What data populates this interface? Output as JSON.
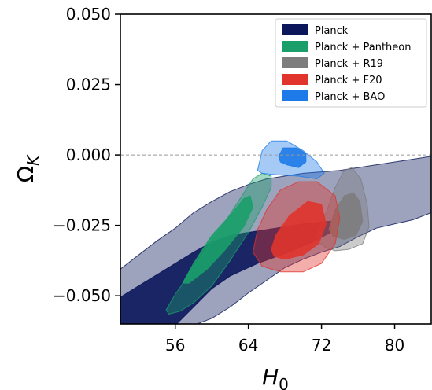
{
  "chart_data": {
    "type": "contour",
    "xlabel": "H_0",
    "ylabel": "Ω_K",
    "xlim": [
      50,
      84
    ],
    "ylim": [
      -0.06,
      0.05
    ],
    "xticks": [
      "56",
      "64",
      "72",
      "80"
    ],
    "yticks": [
      "0.050",
      "0.025",
      "0.000",
      "−0.025",
      "−0.050"
    ],
    "reference_line": {
      "y": 0.0,
      "style": "dashed",
      "color": "#999999"
    },
    "legend_position": "top-right",
    "series": [
      {
        "name": "Planck",
        "color": "#0b175a",
        "contours": [
          {
            "level": "2σ",
            "points": [
              [
                50,
                -0.0405
              ],
              [
                52,
                -0.0355
              ],
              [
                54,
                -0.0305
              ],
              [
                56,
                -0.026
              ],
              [
                58,
                -0.0205
              ],
              [
                60,
                -0.0165
              ],
              [
                62,
                -0.013
              ],
              [
                64,
                -0.0105
              ],
              [
                66,
                -0.0085
              ],
              [
                70,
                -0.0065
              ],
              [
                74,
                -0.0055
              ],
              [
                78,
                -0.0035
              ],
              [
                82,
                -0.0015
              ],
              [
                84,
                -0.0005
              ],
              [
                84,
                -0.0205
              ],
              [
                82,
                -0.023
              ],
              [
                80,
                -0.0245
              ],
              [
                78,
                -0.026
              ],
              [
                76,
                -0.029
              ],
              [
                74,
                -0.0325
              ],
              [
                72,
                -0.0345
              ],
              [
                70,
                -0.037
              ],
              [
                68,
                -0.04
              ],
              [
                66,
                -0.0445
              ],
              [
                64,
                -0.049
              ],
              [
                62,
                -0.054
              ],
              [
                60,
                -0.058
              ],
              [
                58,
                -0.0605
              ],
              [
                50,
                -0.0605
              ]
            ]
          },
          {
            "level": "1σ",
            "points": [
              [
                50,
                -0.0505
              ],
              [
                52,
                -0.0465
              ],
              [
                54,
                -0.0425
              ],
              [
                56,
                -0.0385
              ],
              [
                58,
                -0.0345
              ],
              [
                60,
                -0.031
              ],
              [
                62,
                -0.0285
              ],
              [
                64,
                -0.0275
              ],
              [
                66,
                -0.0265
              ],
              [
                70,
                -0.0245
              ],
              [
                73,
                -0.0235
              ],
              [
                73,
                -0.0275
              ],
              [
                71,
                -0.031
              ],
              [
                68,
                -0.035
              ],
              [
                65,
                -0.0385
              ],
              [
                62,
                -0.043
              ],
              [
                60,
                -0.0475
              ],
              [
                58,
                -0.054
              ],
              [
                56,
                -0.0605
              ],
              [
                50,
                -0.0605
              ]
            ]
          }
        ]
      },
      {
        "name": "Planck + Pantheon",
        "color": "#1a9e6a",
        "contours": [
          {
            "level": "2σ",
            "points": [
              [
                55,
                -0.055
              ],
              [
                56,
                -0.0495
              ],
              [
                57.5,
                -0.0425
              ],
              [
                59,
                -0.0355
              ],
              [
                61,
                -0.026
              ],
              [
                63,
                -0.016
              ],
              [
                64.5,
                -0.0085
              ],
              [
                65.5,
                -0.0065
              ],
              [
                66.5,
                -0.0075
              ],
              [
                66.5,
                -0.0115
              ],
              [
                65.5,
                -0.0185
              ],
              [
                64,
                -0.0275
              ],
              [
                62,
                -0.0375
              ],
              [
                60,
                -0.0465
              ],
              [
                58,
                -0.0525
              ],
              [
                56.5,
                -0.0555
              ],
              [
                55.3,
                -0.0565
              ]
            ]
          },
          {
            "level": "1σ",
            "points": [
              [
                56.8,
                -0.0455
              ],
              [
                58,
                -0.0385
              ],
              [
                60,
                -0.0285
              ],
              [
                62,
                -0.0215
              ],
              [
                63.5,
                -0.0155
              ],
              [
                64.2,
                -0.0145
              ],
              [
                64.5,
                -0.0185
              ],
              [
                63.5,
                -0.0255
              ],
              [
                61.5,
                -0.0335
              ],
              [
                59.5,
                -0.0405
              ],
              [
                57.5,
                -0.0455
              ]
            ]
          }
        ]
      },
      {
        "name": "Planck + R19",
        "color": "#7d7d7d",
        "contours": [
          {
            "level": "2σ",
            "points": [
              [
                71.5,
                -0.0285
              ],
              [
                72.5,
                -0.0205
              ],
              [
                73.5,
                -0.0115
              ],
              [
                74.5,
                -0.0055
              ],
              [
                75.3,
                -0.0045
              ],
              [
                76.3,
                -0.0085
              ],
              [
                77,
                -0.0175
              ],
              [
                77.2,
                -0.0255
              ],
              [
                76.5,
                -0.0315
              ],
              [
                75,
                -0.0335
              ],
              [
                73.5,
                -0.034
              ],
              [
                72.5,
                -0.033
              ],
              [
                71.7,
                -0.031
              ]
            ]
          },
          {
            "level": "1σ",
            "points": [
              [
                72.8,
                -0.0265
              ],
              [
                73.5,
                -0.0195
              ],
              [
                74.5,
                -0.0145
              ],
              [
                75.5,
                -0.0135
              ],
              [
                76.2,
                -0.0165
              ],
              [
                76.5,
                -0.0235
              ],
              [
                75.8,
                -0.0285
              ],
              [
                74.5,
                -0.03
              ],
              [
                73.3,
                -0.029
              ]
            ]
          }
        ]
      },
      {
        "name": "Planck + F20",
        "color": "#e0342c",
        "contours": [
          {
            "level": "2σ",
            "points": [
              [
                64.5,
                -0.0345
              ],
              [
                65,
                -0.0265
              ],
              [
                66,
                -0.0195
              ],
              [
                67.5,
                -0.0125
              ],
              [
                69.5,
                -0.0095
              ],
              [
                71.5,
                -0.0095
              ],
              [
                73.5,
                -0.0145
              ],
              [
                74,
                -0.0225
              ],
              [
                73.5,
                -0.0315
              ],
              [
                72,
                -0.0385
              ],
              [
                70,
                -0.0415
              ],
              [
                67.5,
                -0.0415
              ],
              [
                65.5,
                -0.0395
              ]
            ]
          },
          {
            "level": "1σ",
            "points": [
              [
                66.5,
                -0.0335
              ],
              [
                67,
                -0.0285
              ],
              [
                68.5,
                -0.0215
              ],
              [
                70.5,
                -0.0165
              ],
              [
                72,
                -0.0175
              ],
              [
                72.5,
                -0.0245
              ],
              [
                71.7,
                -0.0315
              ],
              [
                70,
                -0.0355
              ],
              [
                68,
                -0.037
              ],
              [
                66.8,
                -0.036
              ]
            ]
          }
        ]
      },
      {
        "name": "Planck + BAO",
        "color": "#1e7ae8",
        "contours": [
          {
            "level": "2σ",
            "points": [
              [
                65,
                -0.0055
              ],
              [
                65.5,
                0.0015
              ],
              [
                66.5,
                0.005
              ],
              [
                68.2,
                0.005
              ],
              [
                70,
                0.0015
              ],
              [
                71.5,
                -0.0025
              ],
              [
                72.3,
                -0.0065
              ],
              [
                71.5,
                -0.0085
              ],
              [
                69.5,
                -0.0075
              ],
              [
                67,
                -0.007
              ],
              [
                65.5,
                -0.0065
              ]
            ]
          },
          {
            "level": "1σ",
            "points": [
              [
                67.3,
                -0.0005
              ],
              [
                67.8,
                0.0025
              ],
              [
                69.3,
                0.0025
              ],
              [
                70.3,
                0.0005
              ],
              [
                70.3,
                -0.0025
              ],
              [
                69.5,
                -0.0045
              ],
              [
                68.2,
                -0.0035
              ],
              [
                67.5,
                -0.0025
              ]
            ]
          }
        ]
      }
    ]
  }
}
